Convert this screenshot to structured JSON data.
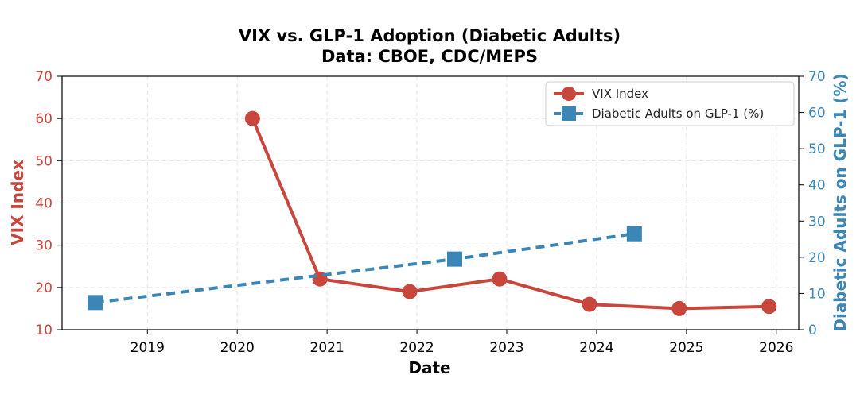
{
  "chart_data": {
    "type": "line",
    "title": "VIX vs. GLP-1 Adoption (Diabetic Adults)",
    "subtitle": "Data: CBOE, CDC/MEPS",
    "xlabel": "Date",
    "ylabel_left": "VIX Index",
    "ylabel_right": "Diabetic Adults on GLP-1 (%)",
    "x_ticks": [
      "2019",
      "2020",
      "2021",
      "2022",
      "2023",
      "2024",
      "2025",
      "2026"
    ],
    "x_tick_values": [
      2019,
      2020,
      2021,
      2022,
      2023,
      2024,
      2025,
      2026
    ],
    "xlim": [
      2018.05,
      2026.25
    ],
    "ylim_left": [
      10,
      70
    ],
    "ylim_right": [
      0,
      70
    ],
    "y_ticks_left": [
      10,
      20,
      30,
      40,
      50,
      60,
      70
    ],
    "y_ticks_right": [
      0,
      10,
      20,
      30,
      40,
      50,
      60,
      70
    ],
    "grid": true,
    "legend_position": "top-right",
    "colors": {
      "vix": "#c9463d",
      "glp": "#3a86b6"
    },
    "series": [
      {
        "name": "VIX Index",
        "axis": "left",
        "style": "solid-circle",
        "x": [
          2020.17,
          2020.92,
          2021.92,
          2022.92,
          2023.92,
          2024.92,
          2025.92
        ],
        "values": [
          60,
          22,
          19,
          22,
          16,
          15,
          15.5
        ]
      },
      {
        "name": "Diabetic Adults on GLP-1 (%)",
        "axis": "right",
        "style": "dashed-square",
        "x": [
          2018.42,
          2022.42,
          2024.42
        ],
        "values": [
          7.5,
          19.5,
          26.5
        ]
      }
    ]
  }
}
